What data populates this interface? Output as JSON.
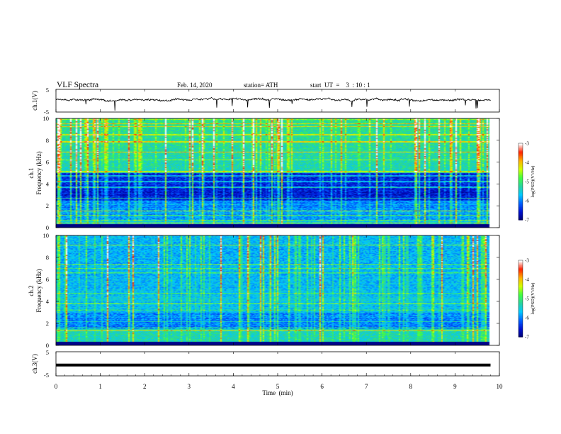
{
  "header": {
    "title": "VLF  Spectra",
    "date": "Feb. 14, 2020",
    "station": "station= ATH",
    "start_ut": "start  UT  =    3  : 10 : 1"
  },
  "chart_data": [
    {
      "type": "line",
      "name": "ch1-voltage",
      "ylabel": "ch.1(V)",
      "ylim": [
        -5,
        5
      ],
      "yticks": [
        5,
        -5
      ],
      "xlim": [
        0,
        10
      ],
      "data_extent_min": [
        0,
        9.8
      ],
      "approx_level_v": 0.5,
      "noise_amplitude_v": 1.0
    },
    {
      "type": "heatmap",
      "name": "ch1-spectrogram",
      "ylabel": "ch.1\nFrequency (kHz)",
      "ylim": [
        0,
        10
      ],
      "yticks": [
        0,
        2,
        4,
        6,
        8,
        10
      ],
      "xlim": [
        0,
        10
      ],
      "data_extent_min": [
        0,
        9.8
      ],
      "colorbar": {
        "label": "log(PSD)(V²/Hz)",
        "range": [
          -7,
          -3
        ],
        "ticks": [
          -3,
          -4,
          -5,
          -6,
          -7
        ]
      }
    },
    {
      "type": "heatmap",
      "name": "ch2-spectrogram",
      "ylabel": "ch.2\nFrequency (kHz)",
      "ylim": [
        0,
        10
      ],
      "yticks": [
        0,
        2,
        4,
        6,
        8,
        10
      ],
      "xlim": [
        0,
        10
      ],
      "data_extent_min": [
        0,
        9.8
      ],
      "colorbar": {
        "label": "log(PSD)(V²/Hz)",
        "range": [
          -7,
          -3
        ],
        "ticks": [
          -3,
          -4,
          -5,
          -6,
          -7
        ]
      }
    },
    {
      "type": "line",
      "name": "ch3-voltage",
      "ylabel": "ch.3(V)",
      "ylim": [
        -5,
        5
      ],
      "yticks": [
        5,
        -5
      ],
      "xlim": [
        0,
        10
      ],
      "data_extent_min": [
        0,
        9.8
      ],
      "approx_level_v": -0.5,
      "noise_amplitude_v": 0
    }
  ],
  "x_axis": {
    "label": "Time  (min)",
    "ticks": [
      0,
      1,
      2,
      3,
      4,
      5,
      6,
      7,
      8,
      9,
      10
    ]
  },
  "colors": {
    "trace": "#000000",
    "axis": "#000000",
    "colormap": [
      "#000070",
      "#0010d0",
      "#0060ff",
      "#00c8ff",
      "#28d2a0",
      "#40ff40",
      "#d0ff00",
      "#ffb000",
      "#ff2000",
      "#ffffff"
    ]
  }
}
